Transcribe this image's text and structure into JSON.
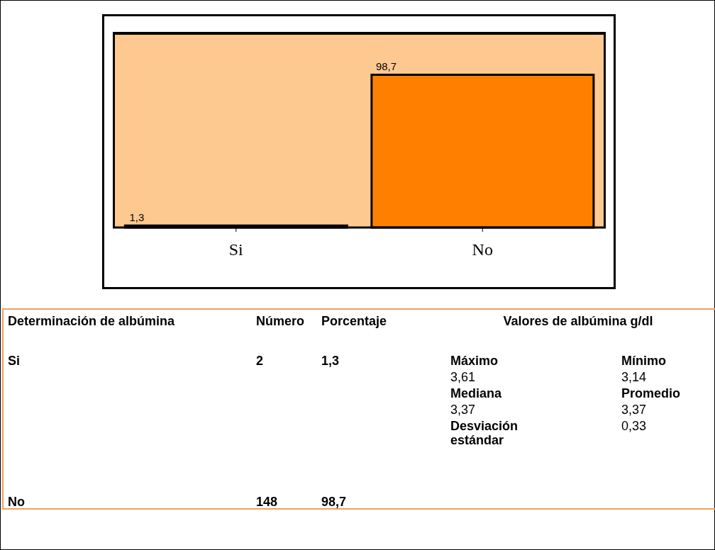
{
  "chart_data": {
    "type": "bar",
    "categories": [
      "Si",
      "No"
    ],
    "values": [
      1.3,
      98.7
    ],
    "color": "#ff8000",
    "value_labels": [
      "1,3",
      "98,7"
    ],
    "annotations": [
      "Determinación de albúmina",
      "Número",
      "Porcentaje",
      "Valores de albúmina g/dl",
      "Si",
      "2",
      "1,3",
      "Máximo",
      "Mínimo",
      "3,61",
      "3,14",
      "Mediana",
      "Promedio",
      "3,37",
      "3,37",
      "Desviación estándar",
      "0,33",
      "No",
      "148",
      "98,7"
    ]
  }
}
